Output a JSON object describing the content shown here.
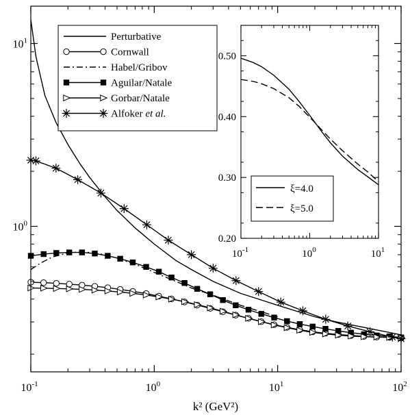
{
  "chart_data": [
    {
      "type": "line",
      "xscale": "log",
      "yscale": "log",
      "xlim": [
        0.1,
        100
      ],
      "ylim": [
        0.16,
        16
      ],
      "xlabel": "k² (GeV²)",
      "ylabel": "",
      "grid": false,
      "legend_position": "top-left",
      "x_ticks": [
        {
          "value": 0.1,
          "base": "10",
          "exp": "-1"
        },
        {
          "value": 1,
          "base": "10",
          "exp": "0"
        },
        {
          "value": 10,
          "base": "10",
          "exp": "1"
        },
        {
          "value": 100,
          "base": "10",
          "exp": "2"
        }
      ],
      "y_ticks": [
        {
          "value": 1,
          "base": "10",
          "exp": "0"
        },
        {
          "value": 10,
          "base": "10",
          "exp": "1"
        }
      ],
      "series": [
        {
          "name": "Perturbative",
          "name_italic": "",
          "line_style": "solid",
          "marker": "none",
          "x": [
            0.1,
            0.11,
            0.13,
            0.16,
            0.2,
            0.25,
            0.3,
            0.4,
            0.5,
            0.7,
            1,
            1.5,
            2,
            3,
            5,
            7,
            10,
            20,
            30,
            50,
            100
          ],
          "y": [
            13.5,
            8.5,
            5.2,
            3.7,
            2.8,
            2.2,
            1.85,
            1.45,
            1.22,
            0.98,
            0.8,
            0.65,
            0.58,
            0.5,
            0.43,
            0.4,
            0.37,
            0.32,
            0.3,
            0.28,
            0.255
          ]
        },
        {
          "name": "Cornwall",
          "name_italic": "",
          "line_style": "solid",
          "marker": "open-circle",
          "x": [
            0.1,
            0.127,
            0.161,
            0.205,
            0.26,
            0.33,
            0.42,
            0.53,
            0.67,
            0.86,
            1.09,
            1.38,
            1.76,
            2.23,
            2.84,
            3.6,
            4.57,
            5.8,
            7.37,
            9.36,
            11.9,
            15.1,
            19.2,
            24.4,
            31,
            39.3,
            50,
            63.5,
            80.6,
            100
          ],
          "y": [
            0.495,
            0.492,
            0.488,
            0.483,
            0.477,
            0.47,
            0.462,
            0.452,
            0.441,
            0.429,
            0.415,
            0.401,
            0.386,
            0.371,
            0.356,
            0.341,
            0.327,
            0.314,
            0.301,
            0.29,
            0.28,
            0.272,
            0.265,
            0.26,
            0.256,
            0.253,
            0.25,
            0.248,
            0.247,
            0.245
          ]
        },
        {
          "name": "Habel/Gribov",
          "name_italic": "",
          "line_style": "dashdot",
          "marker": "none",
          "x": [
            0.1,
            0.12,
            0.15,
            0.2,
            0.25,
            0.3,
            0.4,
            0.5,
            0.7,
            1,
            1.5,
            2,
            3,
            5,
            10
          ],
          "y": [
            0.58,
            0.63,
            0.68,
            0.715,
            0.725,
            0.72,
            0.7,
            0.67,
            0.62,
            0.56,
            0.5,
            0.46,
            0.42,
            0.37,
            0.32
          ]
        },
        {
          "name": "Aguilar/Natale",
          "name_italic": "",
          "line_style": "solid",
          "marker": "filled-square",
          "x": [
            0.1,
            0.127,
            0.161,
            0.205,
            0.26,
            0.33,
            0.42,
            0.53,
            0.67,
            0.86,
            1.09,
            1.38,
            1.76,
            2.23,
            2.84,
            3.6,
            4.57,
            5.8,
            7.37,
            9.36,
            11.9,
            15.1,
            19.2,
            24.4,
            31,
            39.3,
            50,
            63.5,
            80.6,
            100
          ],
          "y": [
            0.69,
            0.705,
            0.715,
            0.72,
            0.72,
            0.71,
            0.69,
            0.665,
            0.635,
            0.6,
            0.565,
            0.525,
            0.49,
            0.455,
            0.425,
            0.395,
            0.37,
            0.35,
            0.332,
            0.317,
            0.303,
            0.292,
            0.283,
            0.275,
            0.268,
            0.262,
            0.257,
            0.253,
            0.25,
            0.247
          ]
        },
        {
          "name": "Gorbar/Natale",
          "name_italic": "",
          "line_style": "solid",
          "marker": "open-triangle-right",
          "x": [
            0.1,
            0.127,
            0.161,
            0.205,
            0.26,
            0.33,
            0.42,
            0.53,
            0.67,
            0.86,
            1.09,
            1.38,
            1.76,
            2.23,
            2.84,
            3.6,
            4.57,
            5.8,
            7.37,
            9.36,
            11.9,
            15.1,
            19.2,
            24.4,
            31,
            39.3,
            50,
            63.5,
            80.6,
            100
          ],
          "y": [
            0.46,
            0.459,
            0.457,
            0.455,
            0.452,
            0.448,
            0.443,
            0.437,
            0.43,
            0.421,
            0.411,
            0.4,
            0.387,
            0.373,
            0.358,
            0.343,
            0.328,
            0.314,
            0.301,
            0.289,
            0.279,
            0.27,
            0.263,
            0.258,
            0.254,
            0.251,
            0.249,
            0.248,
            0.247,
            0.246
          ]
        },
        {
          "name": "Alfoker ",
          "name_italic": "et al.",
          "line_style": "solid",
          "marker": "asterisk",
          "x": [
            0.1,
            0.11,
            0.16,
            0.24,
            0.37,
            0.57,
            0.87,
            1.3,
            2,
            3,
            4.6,
            7,
            10.6,
            16,
            24.5,
            37,
            56,
            85,
            100
          ],
          "y": [
            2.3,
            2.28,
            2.08,
            1.8,
            1.52,
            1.25,
            1.02,
            0.84,
            0.7,
            0.59,
            0.505,
            0.44,
            0.385,
            0.345,
            0.31,
            0.285,
            0.265,
            0.248,
            0.243
          ]
        }
      ]
    },
    {
      "type": "line",
      "xscale": "log",
      "yscale": "linear",
      "xlim": [
        0.1,
        10
      ],
      "ylim": [
        0.2,
        0.55
      ],
      "xlabel": "",
      "ylabel": "",
      "grid": false,
      "legend_position": "bottom-left",
      "x_ticks": [
        {
          "value": 0.1,
          "base": "10",
          "exp": "-1"
        },
        {
          "value": 1,
          "base": "10",
          "exp": "0"
        },
        {
          "value": 10,
          "base": "10",
          "exp": "1"
        }
      ],
      "y_ticks": [
        {
          "value": 0.2,
          "label": "0.20"
        },
        {
          "value": 0.3,
          "label": "0.30"
        },
        {
          "value": 0.4,
          "label": "0.40"
        },
        {
          "value": 0.5,
          "label": "0.50"
        }
      ],
      "series": [
        {
          "name": "ξ=4.0",
          "line_style": "solid",
          "x": [
            0.1,
            0.15,
            0.2,
            0.3,
            0.5,
            0.7,
            1,
            1.5,
            2,
            3,
            5,
            7,
            10
          ],
          "y": [
            0.496,
            0.489,
            0.482,
            0.468,
            0.445,
            0.425,
            0.402,
            0.375,
            0.357,
            0.335,
            0.313,
            0.301,
            0.288
          ]
        },
        {
          "name": "ξ=5.0",
          "line_style": "dashed",
          "x": [
            0.1,
            0.15,
            0.2,
            0.3,
            0.5,
            0.7,
            1,
            1.5,
            2,
            3,
            5,
            7,
            10
          ],
          "y": [
            0.461,
            0.458,
            0.454,
            0.446,
            0.431,
            0.417,
            0.399,
            0.378,
            0.363,
            0.344,
            0.322,
            0.309,
            0.293
          ]
        }
      ]
    }
  ]
}
